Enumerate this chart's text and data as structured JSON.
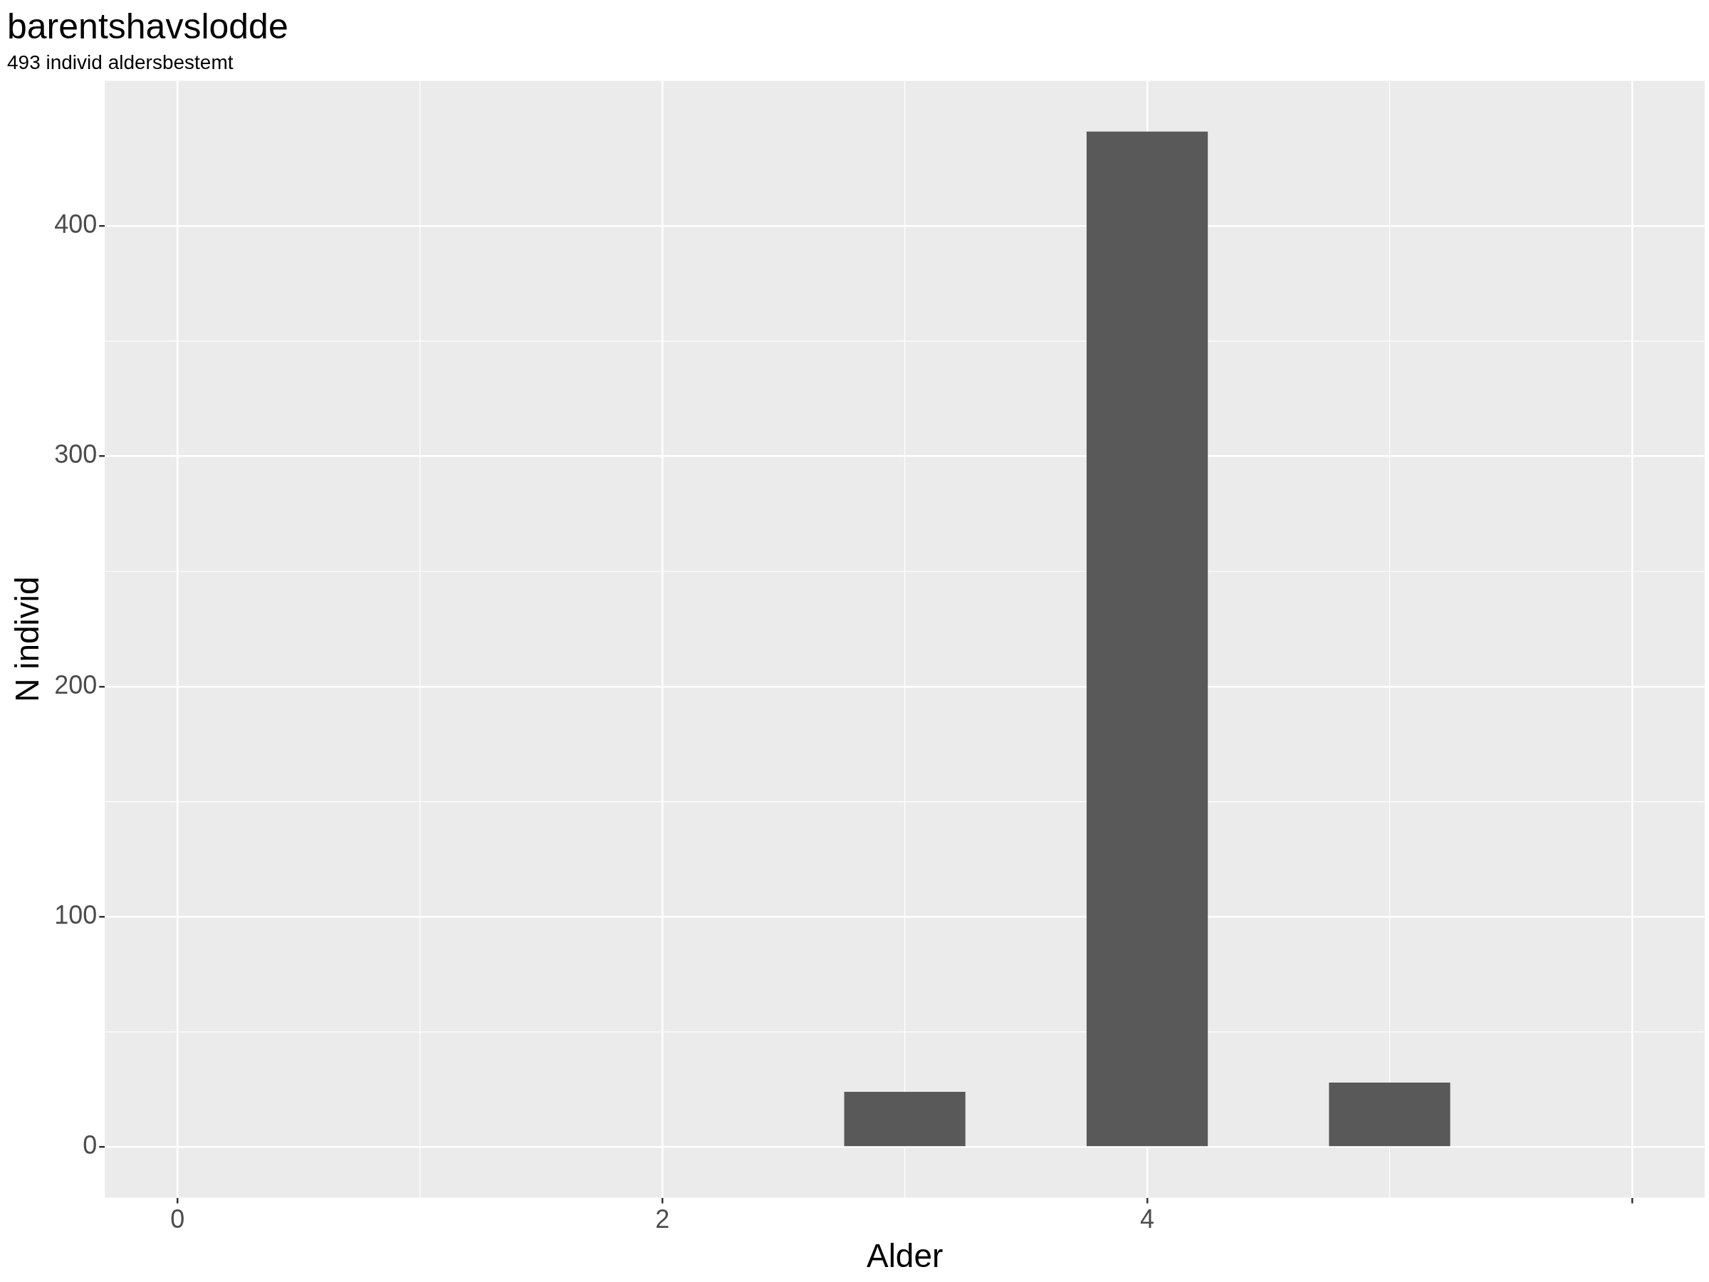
{
  "chart_data": {
    "type": "bar",
    "title": "barentshavslodde",
    "subtitle": "493 individ aldersbestemt",
    "xlabel": "Alder",
    "ylabel": "N individ",
    "x": [
      3,
      4,
      5
    ],
    "values": [
      24,
      441,
      28
    ],
    "color": "#595959",
    "xlim": [
      -0.3,
      6.3
    ],
    "xticks": [
      0,
      2,
      4,
      {
        "value": 6,
        "label": null
      }
    ],
    "ylim": [
      -22,
      463
    ],
    "yticks": [
      0,
      100,
      200,
      300,
      400
    ],
    "grid": true
  }
}
